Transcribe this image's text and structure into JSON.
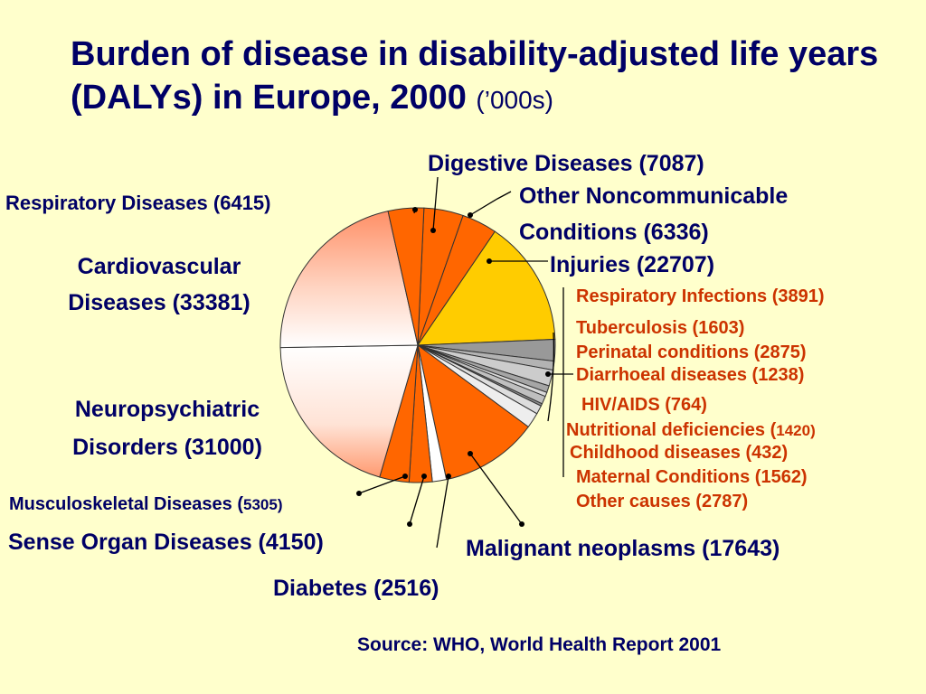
{
  "title": {
    "main": "Burden of disease in disability-adjusted life years (DALYs) in Europe, 2000",
    "unit": "(’000s)"
  },
  "source": "Source:  WHO, World Health Report 2001",
  "colors": {
    "background": "#ffffcc",
    "text": "#000066",
    "group_label": "#cc3300",
    "orange": "#ff6600",
    "yellow": "#ffcc00",
    "grey": "#999999",
    "light": "#ffffff"
  },
  "chart_data": {
    "type": "pie",
    "unit": "DALYs ('000s)",
    "start_at": "Digestive Diseases, clockwise from top",
    "slices": [
      {
        "label": "Digestive Diseases (7087)",
        "value": 7087,
        "color": "#ff6600"
      },
      {
        "label": "Other Noncommunicable Conditions (6336)",
        "value": 6336,
        "color": "#ff6600"
      },
      {
        "label": "Injuries (22707)",
        "value": 22707,
        "color": "#ffcc00"
      },
      {
        "label": "Respiratory Infections (3891)",
        "value": 3891,
        "color": "#999999"
      },
      {
        "label": "Tuberculosis (1603)",
        "value": 1603,
        "color": "#b3b3b3"
      },
      {
        "label": "Perinatal conditions (2875)",
        "value": 2875,
        "color": "#cccccc"
      },
      {
        "label": "Diarrhoeal diseases (1238)",
        "value": 1238,
        "color": "#a6a6a6"
      },
      {
        "label": "HIV/AIDS (764)",
        "value": 764,
        "color": "#d9d9d9"
      },
      {
        "label": "Nutritional deficiencies (1420)",
        "value": 1420,
        "color": "#bfbfbf"
      },
      {
        "label": "Childhood diseases (432)",
        "value": 432,
        "color": "#8c8c8c"
      },
      {
        "label": "Maternal Conditions (1562)",
        "value": 1562,
        "color": "#dddddd"
      },
      {
        "label": "Other causes (2787)",
        "value": 2787,
        "color": "#eeeeee"
      },
      {
        "label": "Malignant neoplasms (17643)",
        "value": 17643,
        "color": "#ff6600"
      },
      {
        "label": "Diabetes (2516)",
        "value": 2516,
        "color": "#ffffff"
      },
      {
        "label": "Sense Organ Diseases (4150)",
        "value": 4150,
        "color": "#ff6600"
      },
      {
        "label": "Musculoskeletal Diseases (5305)",
        "value": 5305,
        "color": "#ff6600"
      },
      {
        "label": "Neuropsychiatric Disorders (31000)",
        "value": 31000,
        "color": "gradient-white"
      },
      {
        "label": "Cardiovascular Diseases (33381)",
        "value": 33381,
        "color": "gradient-salmon"
      },
      {
        "label": "Respiratory Diseases (6415)",
        "value": 6415,
        "color": "#ff6600"
      }
    ]
  },
  "labels": {
    "digestive": "Digestive Diseases (7087)",
    "respiratory": "Respiratory Diseases (6415)",
    "other_noncomm_1": "Other Noncommunicable",
    "other_noncomm_2": "Conditions (6336)",
    "injuries": "Injuries (22707)",
    "cardio_1": "Cardiovascular",
    "cardio_2": "Diseases (33381)",
    "neuro_1": "Neuropsychiatric",
    "neuro_2": "Disorders (31000)",
    "musculo_a": "Musculoskeletal Diseases (",
    "musculo_b": "5305)",
    "sense": "Sense Organ Diseases (4150)",
    "diabetes": "Diabetes (2516)",
    "malignant": "Malignant neoplasms (17643)",
    "resp_inf": "Respiratory Infections (3891)",
    "tb": "Tuberculosis (1603)",
    "perinatal": "Perinatal conditions (2875)",
    "diarrhoeal": "Diarrhoeal diseases (1238)",
    "hiv": "HIV/AIDS (764)",
    "nutritional_a": "Nutritional deficiencies (",
    "nutritional_b": "1420)",
    "childhood": "Childhood diseases (432)",
    "maternal": "Maternal Conditions (1562)",
    "other_causes": "Other causes (2787)"
  }
}
